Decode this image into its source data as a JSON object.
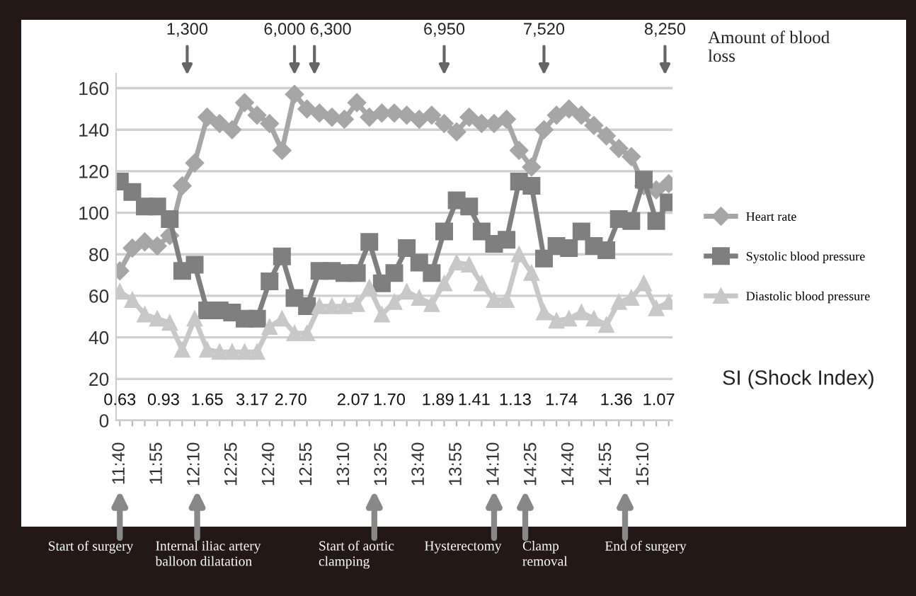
{
  "chart_data": {
    "type": "line",
    "categories": [
      "11:40",
      null,
      null,
      "11:55",
      null,
      null,
      "12:10",
      null,
      null,
      "12:25",
      null,
      null,
      "12:40",
      null,
      null,
      "12:55",
      null,
      null,
      "13:10",
      null,
      null,
      "13:25",
      null,
      null,
      "13:40",
      null,
      null,
      "13:55",
      null,
      null,
      "14:10",
      null,
      null,
      "14:25",
      null,
      null,
      "14:40",
      null,
      null,
      "14:55",
      null,
      null,
      "15:10",
      null,
      null
    ],
    "series": [
      {
        "name": "Heart rate",
        "color": "#a6a6a6",
        "marker": "diamond",
        "values": [
          72,
          83,
          86,
          84,
          89,
          113,
          124,
          146,
          143,
          140,
          153,
          147,
          143,
          130,
          157,
          150,
          148,
          146,
          145,
          153,
          146,
          148,
          148,
          147,
          145,
          147,
          143,
          139,
          146,
          143,
          143,
          145,
          130,
          122,
          140,
          147,
          150,
          147,
          142,
          137,
          131,
          127,
          113,
          111,
          114
        ]
      },
      {
        "name": "Systolic blood pressure",
        "color": "#7f7f7f",
        "marker": "square",
        "values": [
          115,
          110,
          103,
          103,
          97,
          72,
          75,
          53,
          53,
          52,
          49,
          49,
          67,
          79,
          59,
          55,
          72,
          72,
          71,
          71,
          86,
          66,
          71,
          83,
          76,
          71,
          91,
          106,
          103,
          91,
          85,
          87,
          115,
          113,
          78,
          84,
          83,
          91,
          84,
          82,
          97,
          96,
          116,
          96,
          105
        ]
      },
      {
        "name": "Diastolic blood pressure",
        "color": "#c8c8c8",
        "marker": "triangle",
        "values": [
          62,
          58,
          51,
          49,
          47,
          34,
          49,
          34,
          33,
          33,
          33,
          33,
          45,
          49,
          42,
          42,
          55,
          55,
          55,
          56,
          64,
          51,
          57,
          62,
          59,
          56,
          66,
          76,
          75,
          66,
          58,
          58,
          80,
          71,
          52,
          48,
          49,
          52,
          49,
          46,
          57,
          59,
          66,
          54,
          57
        ]
      }
    ],
    "ylim": [
      0,
      167
    ],
    "yticks": [
      0,
      20,
      40,
      60,
      80,
      100,
      120,
      140,
      160
    ],
    "grid": "y",
    "legend": "right",
    "line_style": "solid",
    "annotations": [
      "Amount of blood\nloss",
      "SI (Shock Index)",
      "1,300",
      "6,000",
      "6,300",
      "6,950",
      "7,520",
      "8,250",
      "0.63",
      "0.93",
      "1.65",
      "3.17",
      "2.70",
      "2.07",
      "1.70",
      "1.89",
      "1.41",
      "1.13",
      "1.74",
      "1.36",
      "1.07",
      "Start of surgery",
      "Internal iliac artery\nballoon dilatation",
      "Start of aortic\nclamping",
      "Hysterectomy",
      "Clamp\nremoval",
      "End of surgery"
    ]
  }
}
